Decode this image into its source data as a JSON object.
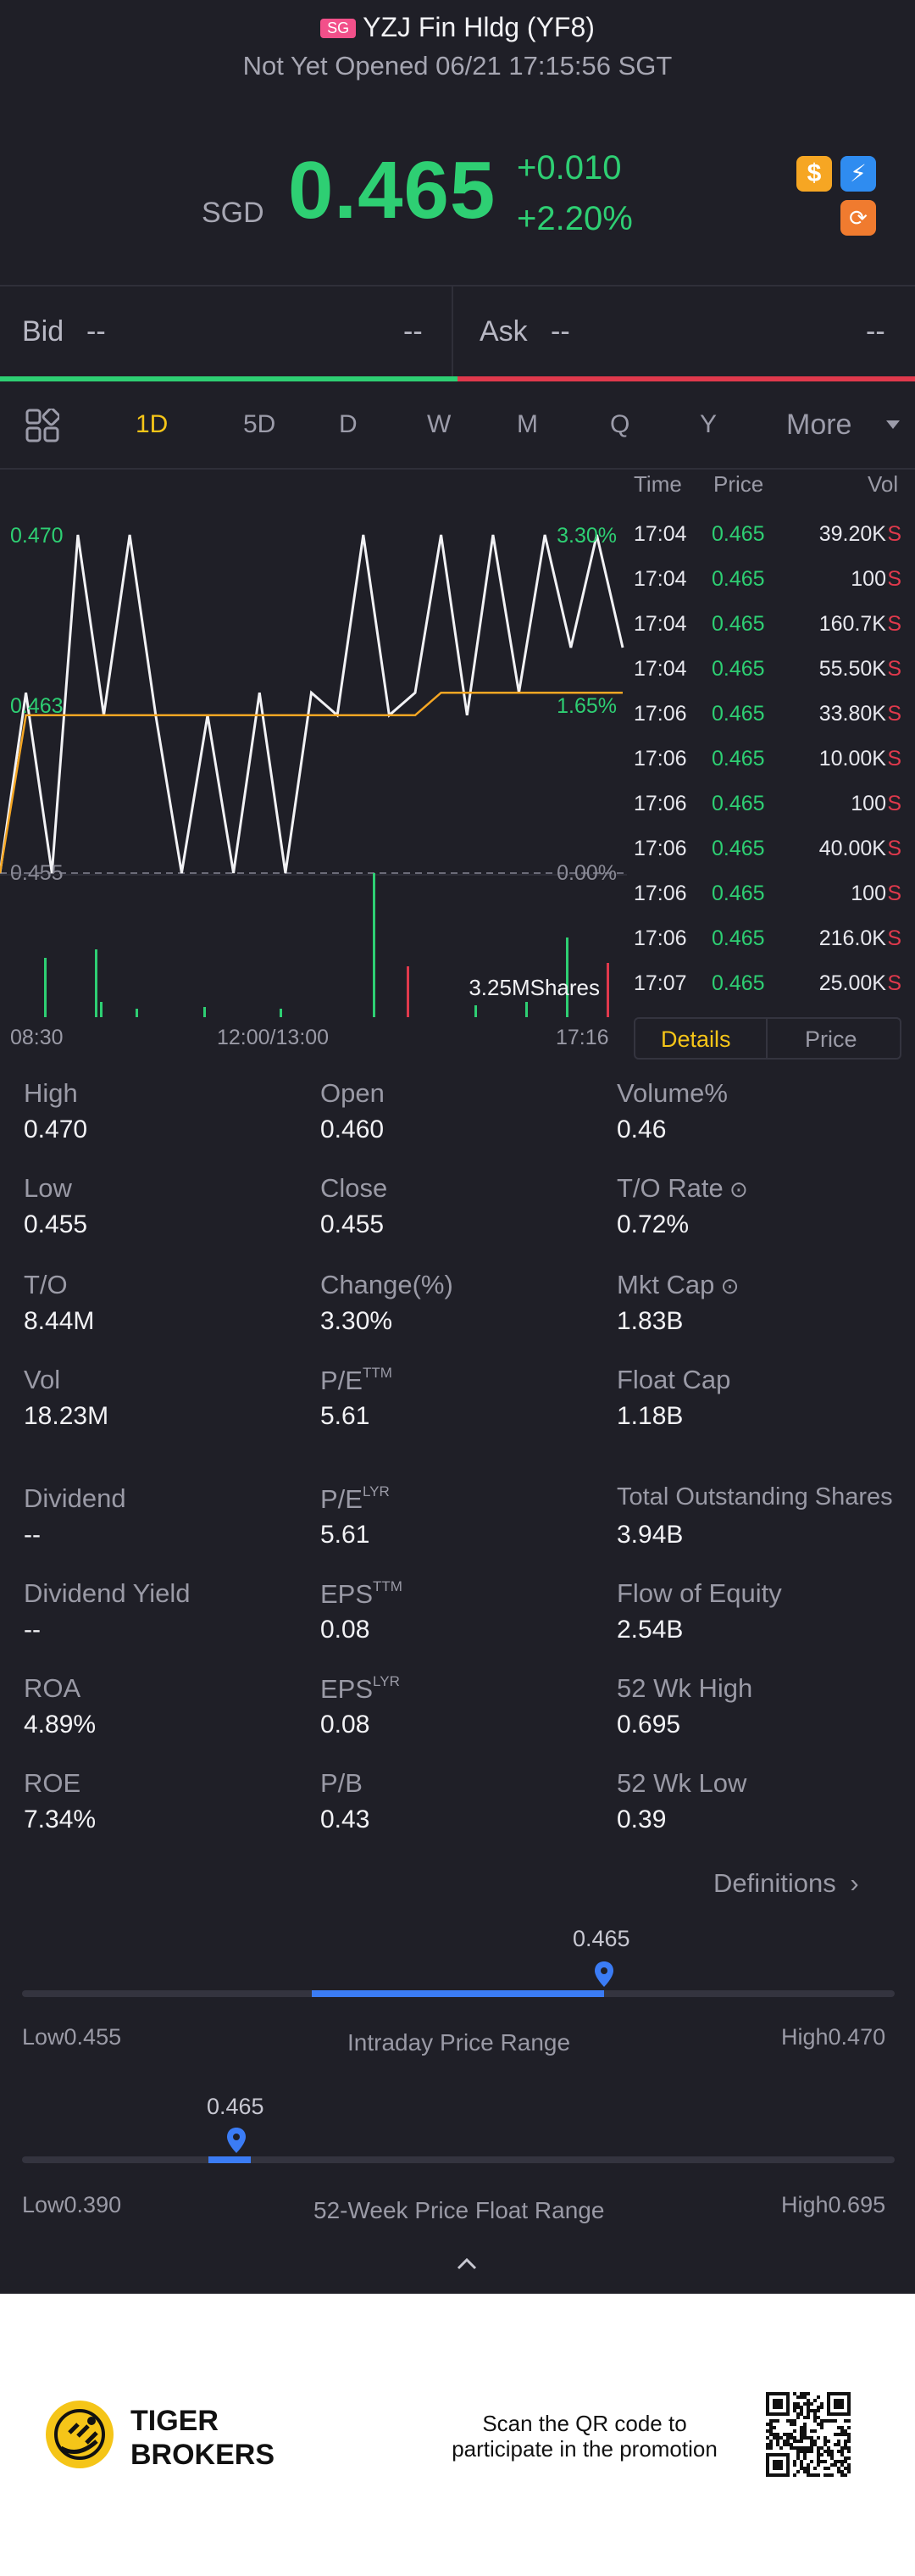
{
  "header": {
    "market_badge": "SG",
    "title": "YZJ Fin Hldg (YF8)",
    "status": "Not Yet Opened 06/21 17:15:56 SGT"
  },
  "quote": {
    "currency": "SGD",
    "price": "0.465",
    "change": "+0.010",
    "change_pct": "+2.20%"
  },
  "bid_ask": {
    "bid_label": "Bid",
    "bid_price": "--",
    "bid_size": "--",
    "ask_label": "Ask",
    "ask_price": "--",
    "ask_size": "--"
  },
  "period_tabs": [
    "1D",
    "5D",
    "D",
    "W",
    "M",
    "Q",
    "Y",
    "More"
  ],
  "active_tab": "1D",
  "chart_data": {
    "type": "line",
    "y_labels_left": [
      "0.470",
      "0.463",
      "0.455"
    ],
    "y_labels_right": [
      "3.30%",
      "1.65%",
      "0.00%"
    ],
    "x_labels": [
      "08:30",
      "12:00/13:00",
      "17:16"
    ],
    "volume_label": "3.25MShares",
    "ylim": [
      0.455,
      0.47
    ],
    "series": [
      {
        "values": [
          0.455,
          0.463,
          0.455,
          0.47,
          0.462,
          0.47,
          0.462,
          0.455,
          0.462,
          0.455,
          0.463,
          0.455,
          0.463,
          0.462,
          0.47,
          0.462,
          0.463,
          0.47,
          0.462,
          0.47,
          0.463,
          0.47,
          0.465,
          0.47,
          0.465
        ]
      },
      {
        "values": [
          0.455,
          0.462,
          0.462,
          0.462,
          0.462,
          0.462,
          0.462,
          0.462,
          0.462,
          0.462,
          0.462,
          0.462,
          0.462,
          0.462,
          0.462,
          0.462,
          0.462,
          0.463,
          0.463,
          0.463,
          0.463,
          0.463,
          0.463,
          0.463,
          0.463
        ]
      }
    ]
  },
  "time_sales": {
    "headers": [
      "Time",
      "Price",
      "Vol"
    ],
    "rows": [
      {
        "time": "17:04",
        "price": "0.465",
        "vol": "39.20K",
        "side": "S"
      },
      {
        "time": "17:04",
        "price": "0.465",
        "vol": "100",
        "side": "S"
      },
      {
        "time": "17:04",
        "price": "0.465",
        "vol": "160.7K",
        "side": "S"
      },
      {
        "time": "17:04",
        "price": "0.465",
        "vol": "55.50K",
        "side": "S"
      },
      {
        "time": "17:06",
        "price": "0.465",
        "vol": "33.80K",
        "side": "S"
      },
      {
        "time": "17:06",
        "price": "0.465",
        "vol": "10.00K",
        "side": "S"
      },
      {
        "time": "17:06",
        "price": "0.465",
        "vol": "100",
        "side": "S"
      },
      {
        "time": "17:06",
        "price": "0.465",
        "vol": "40.00K",
        "side": "S"
      },
      {
        "time": "17:06",
        "price": "0.465",
        "vol": "100",
        "side": "S"
      },
      {
        "time": "17:06",
        "price": "0.465",
        "vol": "216.0K",
        "side": "S"
      },
      {
        "time": "17:07",
        "price": "0.465",
        "vol": "25.00K",
        "side": "S"
      }
    ],
    "tab_details": "Details",
    "tab_price": "Price"
  },
  "stats": {
    "col1": [
      {
        "label": "High",
        "value": "0.470"
      },
      {
        "label": "Low",
        "value": "0.455"
      },
      {
        "label": "T/O",
        "value": "8.44M"
      },
      {
        "label": "Vol",
        "value": "18.23M"
      },
      {
        "label": "Dividend",
        "value": "--"
      },
      {
        "label": "Dividend Yield",
        "value": "--"
      },
      {
        "label": "ROA",
        "value": "4.89%"
      },
      {
        "label": "ROE",
        "value": "7.34%"
      }
    ],
    "col2": [
      {
        "label": "Open",
        "value": "0.460"
      },
      {
        "label": "Close",
        "value": "0.455"
      },
      {
        "label": "Change(%)",
        "value": "3.30%"
      },
      {
        "label": "P/E",
        "sup": "TTM",
        "value": "5.61"
      },
      {
        "label": "P/E",
        "sup": "LYR",
        "value": "5.61"
      },
      {
        "label": "EPS",
        "sup": "TTM",
        "value": "0.08"
      },
      {
        "label": "EPS",
        "sup": "LYR",
        "value": "0.08"
      },
      {
        "label": "P/B",
        "value": "0.43"
      }
    ],
    "col3": [
      {
        "label": "Volume%",
        "value": "0.46"
      },
      {
        "label": "T/O Rate",
        "value": "0.72%"
      },
      {
        "label": "Mkt Cap",
        "value": "1.83B"
      },
      {
        "label": "Float Cap",
        "value": "1.18B"
      },
      {
        "label": "Total Outstanding Shares",
        "value": "3.94B"
      },
      {
        "label": "Flow of Equity",
        "value": "2.54B"
      },
      {
        "label": "52 Wk High",
        "value": "0.695"
      },
      {
        "label": "52 Wk Low",
        "value": "0.39"
      }
    ]
  },
  "definitions_link": "Definitions",
  "intraday_range": {
    "current": "0.465",
    "low_label": "Low",
    "low": "0.455",
    "high_label": "High",
    "high": "0.470",
    "title": "Intraday Price Range",
    "low_pct": 0,
    "current_pct": 0.667
  },
  "week52_range": {
    "current": "0.465",
    "low_label": "Low",
    "low": "0.390",
    "high_label": "High",
    "high": "0.695",
    "title": "52-Week Price Float Range",
    "current_pct": 0.246
  },
  "footer": {
    "brand_line1": "TIGER",
    "brand_line2": "BROKERS",
    "promo_line1": "Scan the QR code to",
    "promo_line2": "participate in the promotion"
  },
  "colors": {
    "up": "#2ecf73",
    "down": "#e0394c",
    "accent": "#f5c518",
    "range_bar": "#3b7cf5",
    "background": "#1f1f27"
  }
}
